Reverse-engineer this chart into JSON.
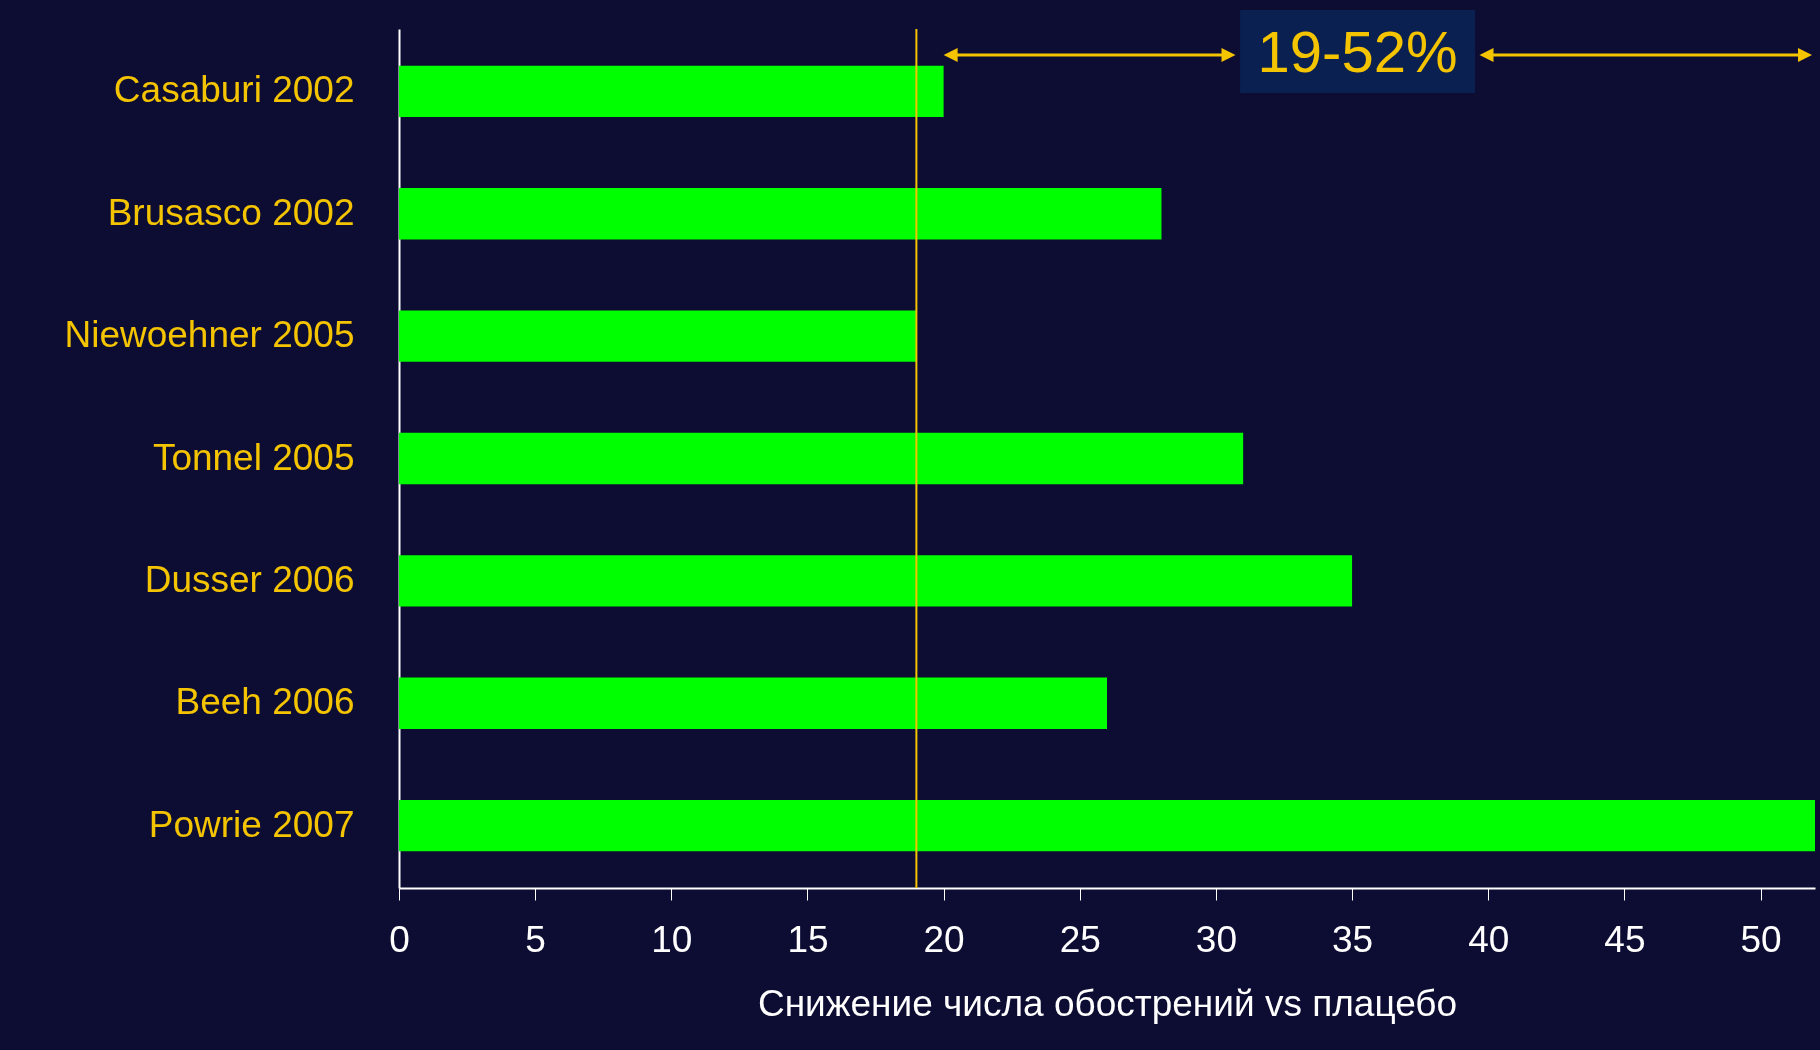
{
  "chart_data": {
    "type": "bar",
    "orientation": "horizontal",
    "xlabel": "Снижение числа обострений vs плацебо",
    "categories": [
      "Casaburi 2002",
      "Brusasco 2002",
      "Niewoehner 2005",
      "Tonnel 2005",
      "Dusser 2006",
      "Beeh 2006",
      "Powrie 2007"
    ],
    "values": [
      20,
      28,
      19,
      31,
      35,
      26,
      52
    ],
    "color": "#00ff00",
    "xlim": [
      0,
      52
    ],
    "xticks": [
      0,
      5,
      10,
      15,
      20,
      25,
      30,
      35,
      40,
      45,
      50
    ],
    "grid": false,
    "ref_lines": [
      {
        "axis": "x",
        "value": 19,
        "color": "#f5c400"
      }
    ],
    "annotations": [
      "19-52%"
    ]
  }
}
